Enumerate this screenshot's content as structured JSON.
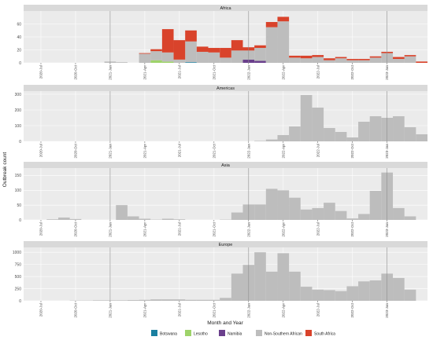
{
  "chart_data": {
    "type": "bar",
    "stacked": true,
    "xlabel": "Month and Year",
    "ylabel": "Outbreak count",
    "grid": true,
    "legend_position": "bottom",
    "x_range": [
      "2020-06",
      "2023-04"
    ],
    "x_ticks": [
      "2020-Jul",
      "2020-Oct",
      "2021-Jan",
      "2021-Apr",
      "2021-Jul",
      "2021-Oct",
      "2022-Jan",
      "2022-Apr",
      "2022-Jul",
      "2022-Oct",
      "2023-Jan"
    ],
    "months": [
      "2020-06",
      "2020-07",
      "2020-08",
      "2020-09",
      "2020-10",
      "2020-11",
      "2020-12",
      "2021-01",
      "2021-02",
      "2021-03",
      "2021-04",
      "2021-05",
      "2021-06",
      "2021-07",
      "2021-08",
      "2021-09",
      "2021-10",
      "2021-11",
      "2021-12",
      "2022-01",
      "2022-02",
      "2022-03",
      "2022-04",
      "2022-05",
      "2022-06",
      "2022-07",
      "2022-08",
      "2022-09",
      "2022-10",
      "2022-11",
      "2022-12",
      "2023-01",
      "2023-02",
      "2023-03",
      "2023-04"
    ],
    "series_info": [
      {
        "name": "Botswana",
        "color": "#1a7fa0"
      },
      {
        "name": "Lesotho",
        "color": "#9ed36a"
      },
      {
        "name": "Namibia",
        "color": "#6a3f8c"
      },
      {
        "name": "Non-Southern African",
        "color": "#bdbdbd"
      },
      {
        "name": "South Africa",
        "color": "#d9432b"
      }
    ],
    "panels": [
      {
        "title": "Africa",
        "ylim": [
          0,
          80
        ],
        "yticks": [
          0,
          20,
          40,
          60
        ],
        "series": [
          {
            "name": "Botswana",
            "values": [
              0,
              0,
              0,
              0,
              0,
              0,
              0,
              0,
              0,
              0,
              0,
              0,
              0,
              0,
              1,
              0,
              0,
              0,
              0,
              0,
              0,
              0,
              0,
              0,
              0,
              0,
              0,
              0,
              0,
              0,
              0,
              0,
              0,
              0,
              0
            ]
          },
          {
            "name": "Lesotho",
            "values": [
              0,
              0,
              0,
              0,
              0,
              0,
              0,
              0,
              0,
              0,
              0,
              4,
              2,
              0,
              0,
              0,
              0,
              0,
              0,
              0,
              0,
              0,
              0,
              0,
              0,
              0,
              0,
              0,
              0,
              0,
              0,
              0,
              0,
              0,
              0
            ]
          },
          {
            "name": "Namibia",
            "values": [
              0,
              0,
              0,
              0,
              0,
              0,
              0,
              0,
              0,
              0,
              0,
              0,
              0,
              0,
              0,
              0,
              0,
              0,
              0,
              5,
              3,
              0,
              0,
              0,
              0,
              0,
              0,
              0,
              0,
              0,
              0,
              0,
              0,
              0,
              0
            ]
          },
          {
            "name": "Non-Southern African",
            "values": [
              0,
              0,
              0,
              0,
              0,
              0,
              0,
              2,
              1,
              0,
              14,
              14,
              14,
              5,
              32,
              17,
              16,
              8,
              19,
              14,
              20,
              55,
              64,
              8,
              7,
              9,
              4,
              7,
              4,
              4,
              8,
              15,
              6,
              10,
              0
            ]
          },
          {
            "name": "South Africa",
            "values": [
              0,
              0,
              0,
              0,
              0,
              0,
              0,
              0,
              0,
              0,
              1,
              3,
              36,
              30,
              17,
              8,
              7,
              15,
              16,
              5,
              4,
              8,
              7,
              3,
              4,
              3,
              3,
              2,
              2,
              2,
              2,
              2,
              3,
              2,
              2
            ]
          }
        ]
      },
      {
        "title": "Americas",
        "ylim": [
          0,
          320
        ],
        "yticks": [
          0,
          100,
          200,
          300
        ],
        "series": [
          {
            "name": "Non-Southern African",
            "values": [
              0,
              0,
              0,
              0,
              0,
              0,
              0,
              0,
              0,
              0,
              0,
              0,
              0,
              0,
              0,
              0,
              0,
              0,
              0,
              0,
              3,
              12,
              40,
              95,
              295,
              215,
              85,
              60,
              25,
              125,
              160,
              150,
              160,
              90,
              45
            ]
          }
        ]
      },
      {
        "title": "Asia",
        "ylim": [
          0,
          175
        ],
        "yticks": [
          0,
          50,
          100,
          150
        ],
        "series": [
          {
            "name": "Non-Southern African",
            "values": [
              0,
              0,
              2,
              8,
              3,
              0,
              0,
              0,
              50,
              12,
              4,
              1,
              4,
              2,
              0,
              0,
              0,
              1,
              25,
              52,
              52,
              105,
              100,
              75,
              35,
              40,
              58,
              30,
              5,
              20,
              98,
              160,
              40,
              12,
              0
            ]
          }
        ]
      },
      {
        "title": "Europe",
        "ylim": [
          0,
          1100
        ],
        "yticks": [
          0,
          250,
          500,
          750,
          1000
        ],
        "series": [
          {
            "name": "Non-Southern African",
            "values": [
              0,
              0,
              0,
              0,
              5,
              5,
              10,
              10,
              10,
              15,
              20,
              30,
              30,
              30,
              20,
              20,
              20,
              60,
              560,
              740,
              1000,
              600,
              980,
              600,
              290,
              230,
              220,
              200,
              300,
              400,
              420,
              560,
              470,
              230,
              0
            ]
          }
        ]
      }
    ]
  }
}
